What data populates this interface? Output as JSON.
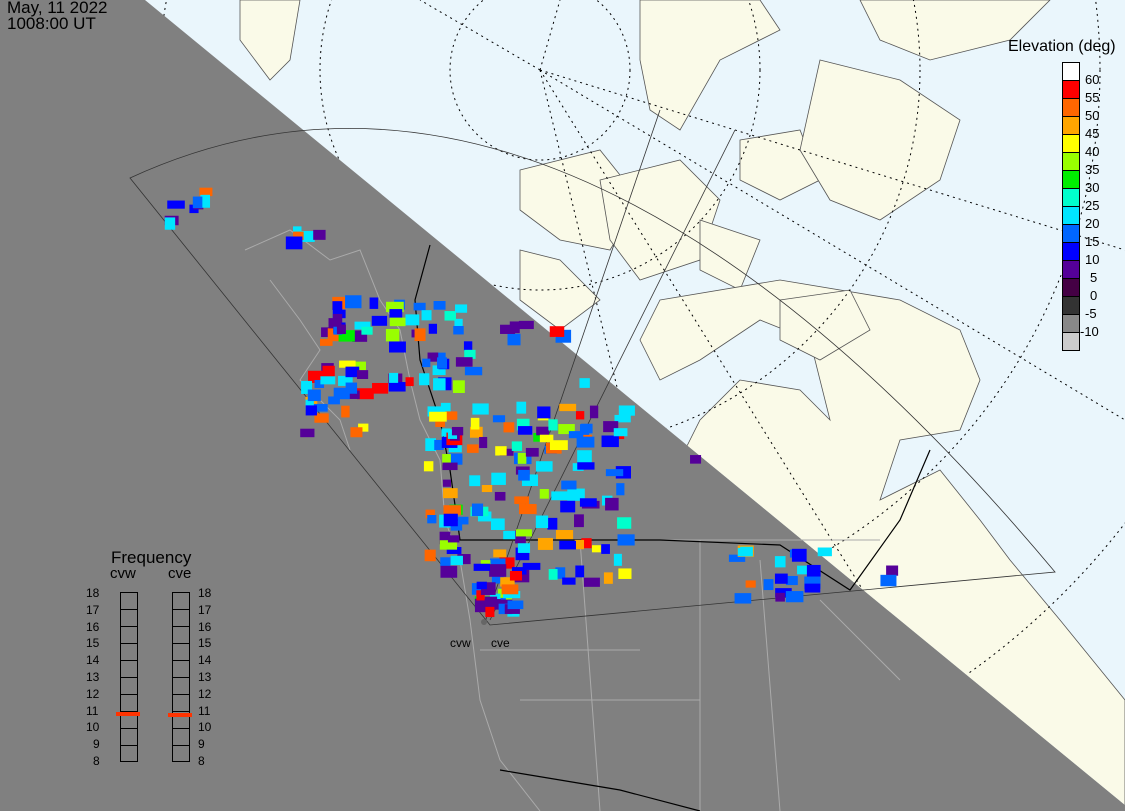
{
  "header": {
    "date": "May, 11 2022",
    "time": "1008:00 UT"
  },
  "colors": {
    "night": "#808080",
    "ocean": "#eaf6fc",
    "land": "#fafae8",
    "frequency_marker": "#ff3300"
  },
  "legend": {
    "title": "Elevation (deg)",
    "colors": [
      "#ffffff",
      "#ff0000",
      "#ff6600",
      "#ffa500",
      "#ffff00",
      "#99ff00",
      "#00ee00",
      "#00ffcc",
      "#00e5ff",
      "#0066ff",
      "#0000ff",
      "#550099",
      "#440044",
      "#333333",
      "#888888",
      "#cccccc"
    ],
    "labels": [
      "60",
      "55",
      "50",
      "45",
      "40",
      "35",
      "30",
      "25",
      "20",
      "15",
      "10",
      "5",
      "0",
      "-5",
      "-10"
    ]
  },
  "frequency": {
    "title": "Frequency",
    "unit_range": [
      8,
      18
    ],
    "ticks": [
      "18",
      "17",
      "16",
      "15",
      "14",
      "13",
      "12",
      "11",
      "10",
      "9",
      "8"
    ],
    "stations": [
      {
        "name": "cvw",
        "value": 10.75
      },
      {
        "name": "cve",
        "value": 10.65
      }
    ]
  },
  "map_labels": {
    "cvw": "cvw",
    "cve": "cve"
  }
}
